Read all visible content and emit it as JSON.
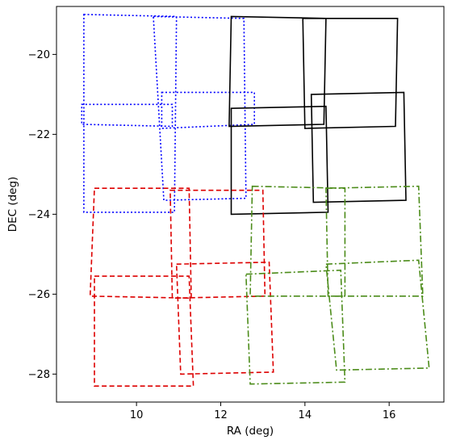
{
  "chart_data": {
    "type": "line",
    "title": "",
    "xlabel": "RA (deg)",
    "ylabel": "DEC (deg)",
    "xlim": [
      8.1,
      17.3
    ],
    "ylim": [
      -28.7,
      -18.8
    ],
    "xticks": [
      10,
      12,
      14,
      16
    ],
    "yticks": [
      -28,
      -26,
      -24,
      -22,
      -20
    ],
    "grid": false,
    "legend": "none",
    "series": [
      {
        "color": "#0000ff",
        "linestyle": "dotted",
        "polygons": [
          [
            [
              8.75,
              -19.0
            ],
            [
              10.95,
              -19.05
            ],
            [
              10.9,
              -23.95
            ],
            [
              8.75,
              -23.95
            ]
          ],
          [
            [
              10.4,
              -19.05
            ],
            [
              12.55,
              -19.1
            ],
            [
              12.6,
              -23.6
            ],
            [
              10.65,
              -23.65
            ]
          ],
          [
            [
              8.7,
              -21.25
            ],
            [
              10.85,
              -21.25
            ],
            [
              10.85,
              -21.8
            ],
            [
              8.7,
              -21.75
            ]
          ],
          [
            [
              10.6,
              -20.95
            ],
            [
              12.8,
              -20.95
            ],
            [
              12.8,
              -21.75
            ],
            [
              10.6,
              -21.85
            ]
          ]
        ]
      },
      {
        "color": "#000000",
        "linestyle": "solid",
        "polygons": [
          [
            [
              12.25,
              -19.05
            ],
            [
              14.5,
              -19.1
            ],
            [
              14.45,
              -21.75
            ],
            [
              12.2,
              -21.8
            ]
          ],
          [
            [
              13.95,
              -19.1
            ],
            [
              16.2,
              -19.1
            ],
            [
              16.15,
              -21.8
            ],
            [
              14.0,
              -21.85
            ]
          ],
          [
            [
              12.25,
              -21.35
            ],
            [
              14.5,
              -21.3
            ],
            [
              14.55,
              -23.95
            ],
            [
              12.25,
              -24.0
            ]
          ],
          [
            [
              14.15,
              -21.0
            ],
            [
              16.35,
              -20.95
            ],
            [
              16.4,
              -23.65
            ],
            [
              14.2,
              -23.7
            ]
          ]
        ]
      },
      {
        "color": "#dd0000",
        "linestyle": "dashed",
        "polygons": [
          [
            [
              9.0,
              -23.35
            ],
            [
              11.25,
              -23.35
            ],
            [
              11.3,
              -26.1
            ],
            [
              8.9,
              -26.05
            ]
          ],
          [
            [
              10.8,
              -23.4
            ],
            [
              13.0,
              -23.4
            ],
            [
              13.05,
              -26.05
            ],
            [
              10.85,
              -26.1
            ]
          ],
          [
            [
              9.0,
              -25.55
            ],
            [
              11.25,
              -25.55
            ],
            [
              11.35,
              -28.3
            ],
            [
              9.0,
              -28.3
            ]
          ],
          [
            [
              10.95,
              -25.25
            ],
            [
              13.15,
              -25.2
            ],
            [
              13.25,
              -27.95
            ],
            [
              11.05,
              -28.0
            ]
          ]
        ]
      },
      {
        "color": "#4c8c1a",
        "linestyle": "dashdot",
        "polygons": [
          [
            [
              12.75,
              -23.3
            ],
            [
              14.95,
              -23.35
            ],
            [
              14.95,
              -26.05
            ],
            [
              12.7,
              -26.05
            ]
          ],
          [
            [
              14.5,
              -23.35
            ],
            [
              16.7,
              -23.3
            ],
            [
              16.8,
              -26.05
            ],
            [
              14.55,
              -26.05
            ]
          ],
          [
            [
              12.6,
              -25.5
            ],
            [
              14.85,
              -25.4
            ],
            [
              14.95,
              -28.2
            ],
            [
              12.7,
              -28.25
            ]
          ],
          [
            [
              14.5,
              -25.25
            ],
            [
              16.7,
              -25.15
            ],
            [
              16.95,
              -27.85
            ],
            [
              14.75,
              -27.9
            ]
          ]
        ]
      }
    ]
  }
}
